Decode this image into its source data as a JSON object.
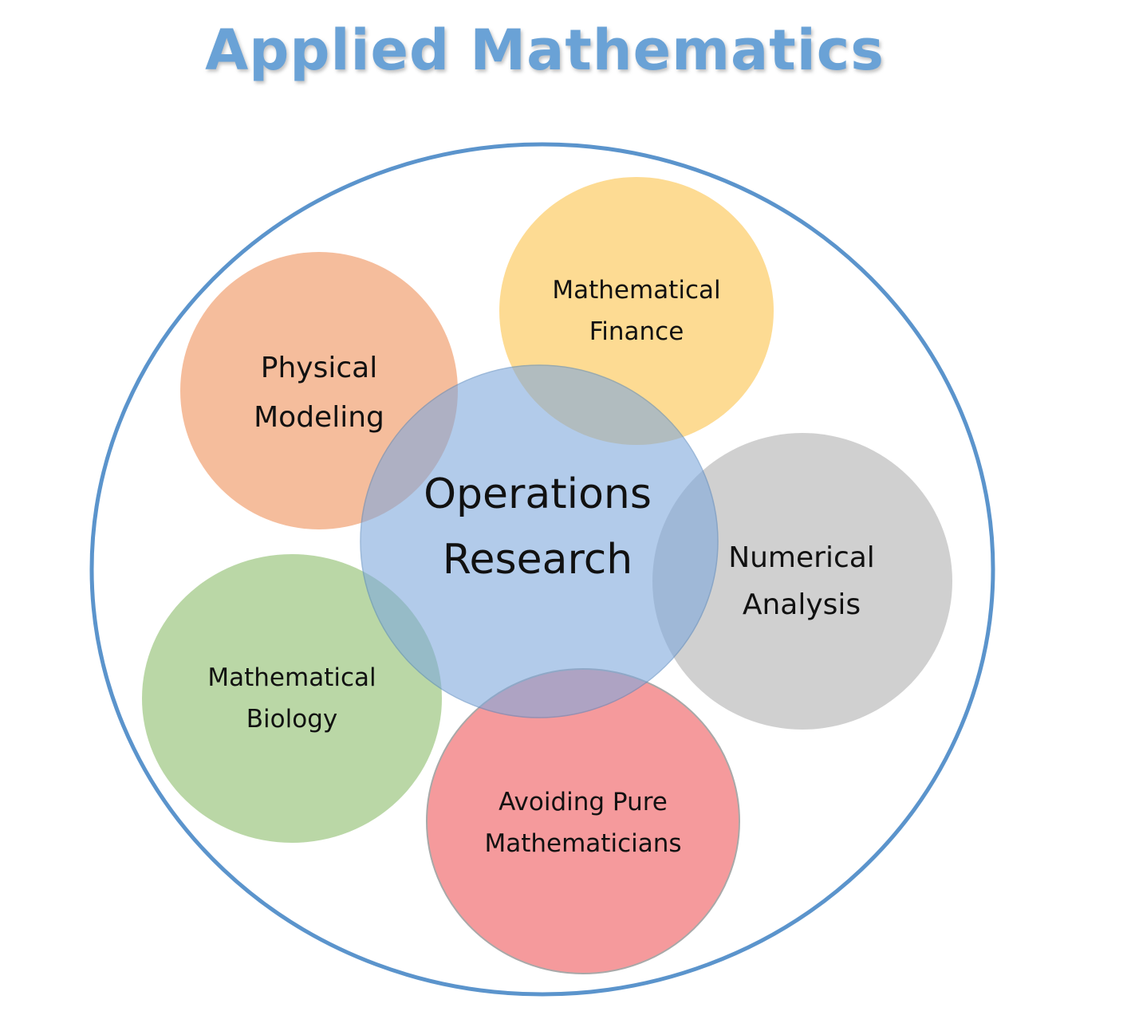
{
  "title": "Applied Mathematics",
  "colors": {
    "title": "#6aa2d6",
    "outer_circle_stroke": "#5b94cc",
    "operations_research": "#8fb4e3",
    "physical_modeling": "#f4b48e",
    "mathematical_finance": "#fdd684",
    "numerical_analysis": "#c8c8c8",
    "mathematical_biology": "#b2d39c",
    "avoiding_pure": "#f4898b"
  },
  "circles": {
    "physical_modeling": {
      "line1": "Physical",
      "line2": "Modeling"
    },
    "mathematical_finance": {
      "line1": "Mathematical",
      "line2": "Finance"
    },
    "numerical_analysis": {
      "line1": "Numerical",
      "line2": "Analysis"
    },
    "mathematical_biology": {
      "line1": "Mathematical",
      "line2": "Biology"
    },
    "avoiding_pure": {
      "line1": "Avoiding Pure",
      "line2": "Mathematicians"
    },
    "operations_research": {
      "line1": "Operations",
      "line2": "Research"
    }
  }
}
